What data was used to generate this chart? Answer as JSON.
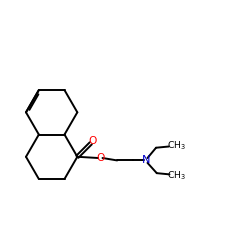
{
  "bg_color": "#ffffff",
  "bond_color": "#000000",
  "O_color": "#ff0000",
  "N_color": "#0000cc",
  "line_width": 1.4,
  "font_size": 7.2,
  "xlim": [
    0,
    10
  ],
  "ylim": [
    0,
    10
  ]
}
